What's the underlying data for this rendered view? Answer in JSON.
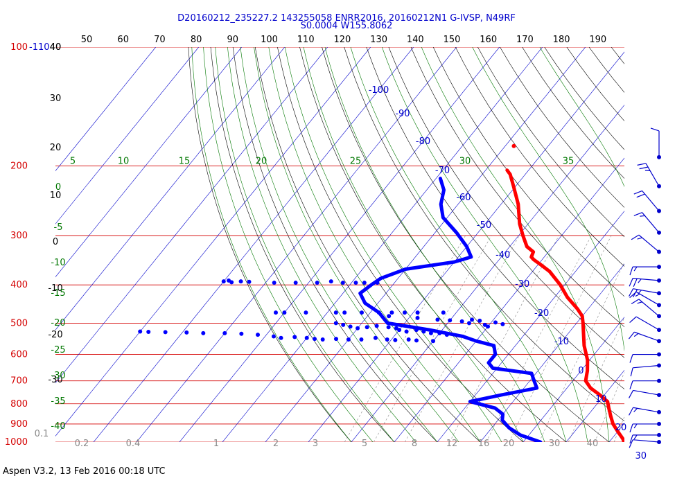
{
  "header": {
    "line1": "D20160212_235227.2 143255058 ENRR2016, 20160212N1 G-IVSP, N49RF",
    "line2": "S0.0004 W155.8062"
  },
  "footer": "Aspen V3.2, 13 Feb 2016  00:18 UTC",
  "colors": {
    "isobar": "#d40000",
    "isotherm": "#0000cc",
    "dry_adiabat": "#000000",
    "moist_adiabat": "#007700",
    "mixing_ratio": "#888888",
    "temperature": "#ff0000",
    "dewpoint": "#0000ff",
    "wind": "#0000cc"
  },
  "chart_data": {
    "type": "skew-t",
    "pressure_labels": [
      "100",
      "200",
      "300",
      "400",
      "500",
      "600",
      "700",
      "800",
      "900",
      "1000"
    ],
    "pressure_extra_label": "-110",
    "temperature_top_ticks": [
      "40",
      "50",
      "60",
      "70",
      "80",
      "90",
      "100",
      "110",
      "120",
      "130",
      "140",
      "150",
      "160",
      "170",
      "180",
      "190"
    ],
    "isotherm_labels": [
      "-100",
      "-90",
      "-80",
      "-70",
      "-60",
      "-50",
      "-40",
      "-30",
      "-20",
      "-10",
      "0",
      "10",
      "20",
      "30"
    ],
    "dry_adiabat_labels": [
      "40",
      "30",
      "20",
      "10",
      "0",
      "-10",
      "-20",
      "-30"
    ],
    "moist_adiabat_labels": [
      "5",
      "10",
      "15",
      "20",
      "25",
      "30",
      "35",
      "0",
      "-5",
      "-10",
      "-15",
      "-20",
      "-25",
      "-30",
      "-35",
      "-40"
    ],
    "mixing_ratio_labels": [
      "0.1",
      "0.2",
      "0.4",
      "1",
      "2",
      "3",
      "5",
      "8",
      "12",
      "16",
      "20",
      "30",
      "40"
    ],
    "temperature_profile": [
      [
        205,
        -55
      ],
      [
        210,
        -53.5
      ],
      [
        225,
        -50.5
      ],
      [
        250,
        -46
      ],
      [
        280,
        -42
      ],
      [
        300,
        -39
      ],
      [
        320,
        -36
      ],
      [
        330,
        -33.5
      ],
      [
        340,
        -33
      ],
      [
        345,
        -32
      ],
      [
        355,
        -29.5
      ],
      [
        370,
        -26
      ],
      [
        400,
        -21
      ],
      [
        430,
        -17
      ],
      [
        460,
        -12.5
      ],
      [
        480,
        -10
      ],
      [
        500,
        -8.5
      ],
      [
        530,
        -6.5
      ],
      [
        570,
        -4
      ],
      [
        620,
        -0.5
      ],
      [
        660,
        1.5
      ],
      [
        700,
        3
      ],
      [
        730,
        5.5
      ],
      [
        760,
        9
      ],
      [
        790,
        12
      ],
      [
        820,
        13.5
      ],
      [
        860,
        15.5
      ],
      [
        900,
        17.5
      ],
      [
        940,
        20
      ],
      [
        980,
        22.5
      ],
      [
        1000,
        23.5
      ]
    ],
    "temperature_isolated": [
      [
        178,
        -58
      ]
    ],
    "dewpoint_profile": [
      [
        215,
        -69
      ],
      [
        230,
        -66
      ],
      [
        250,
        -64
      ],
      [
        270,
        -61
      ],
      [
        295,
        -55
      ],
      [
        320,
        -50
      ],
      [
        340,
        -47
      ],
      [
        350,
        -50
      ],
      [
        365,
        -60
      ],
      [
        385,
        -64
      ],
      [
        400,
        -65
      ],
      [
        420,
        -66
      ],
      [
        445,
        -63
      ],
      [
        470,
        -58
      ],
      [
        500,
        -54
      ],
      [
        520,
        -43
      ],
      [
        540,
        -34
      ],
      [
        555,
        -30
      ],
      [
        570,
        -25
      ],
      [
        600,
        -23
      ],
      [
        630,
        -23
      ],
      [
        650,
        -21
      ],
      [
        670,
        -11
      ],
      [
        700,
        -9
      ],
      [
        730,
        -7
      ],
      [
        760,
        -14
      ],
      [
        790,
        -20
      ],
      [
        820,
        -13
      ],
      [
        850,
        -10
      ],
      [
        880,
        -9
      ],
      [
        920,
        -6
      ],
      [
        960,
        -2
      ],
      [
        1000,
        4
      ]
    ],
    "dewpoint_scatter": [
      [
        390,
        -99
      ],
      [
        392,
        -100
      ],
      [
        394,
        -98
      ],
      [
        392,
        -96
      ],
      [
        393,
        -94
      ],
      [
        395,
        -88
      ],
      [
        395,
        -83
      ],
      [
        395,
        -78
      ],
      [
        392,
        -75
      ],
      [
        395,
        -72
      ],
      [
        395,
        -69
      ],
      [
        395,
        -67
      ],
      [
        395,
        -64
      ],
      [
        470,
        -82
      ],
      [
        470,
        -80
      ],
      [
        470,
        -75
      ],
      [
        470,
        -68
      ],
      [
        470,
        -66
      ],
      [
        470,
        -62
      ],
      [
        470,
        -58
      ],
      [
        470,
        -55
      ],
      [
        470,
        -52
      ],
      [
        470,
        -49
      ],
      [
        470,
        -43
      ],
      [
        480,
        -55
      ],
      [
        485,
        -48
      ],
      [
        490,
        -43
      ],
      [
        492,
        -40
      ],
      [
        495,
        -37
      ],
      [
        500,
        -35
      ],
      [
        505,
        -31
      ],
      [
        510,
        -30
      ],
      [
        490,
        -35
      ],
      [
        493,
        -33
      ],
      [
        498,
        -29
      ],
      [
        503,
        -27
      ],
      [
        500,
        -66
      ],
      [
        505,
        -64
      ],
      [
        510,
        -62
      ],
      [
        515,
        -60
      ],
      [
        512,
        -58
      ],
      [
        508,
        -56
      ],
      [
        512,
        -53
      ],
      [
        515,
        -51
      ],
      [
        520,
        -50
      ],
      [
        525,
        -48
      ],
      [
        520,
        -46
      ],
      [
        525,
        -44
      ],
      [
        530,
        -42
      ],
      [
        530,
        -40
      ],
      [
        535,
        -38
      ],
      [
        525,
        -110
      ],
      [
        526,
        -108
      ],
      [
        527,
        -104
      ],
      [
        528,
        -99
      ],
      [
        530,
        -95
      ],
      [
        530,
        -90
      ],
      [
        532,
        -86
      ],
      [
        535,
        -82
      ],
      [
        540,
        -78
      ],
      [
        545,
        -76
      ],
      [
        542,
        -73
      ],
      [
        545,
        -70
      ],
      [
        548,
        -68
      ],
      [
        550,
        -66
      ],
      [
        548,
        -63
      ],
      [
        550,
        -60
      ],
      [
        550,
        -57
      ],
      [
        545,
        -54
      ],
      [
        550,
        -51
      ],
      [
        552,
        -49
      ],
      [
        550,
        -46
      ],
      [
        553,
        -44
      ],
      [
        555,
        -40
      ]
    ],
    "wind_barbs": [
      {
        "pressure": 190,
        "direction": 360,
        "speed": 10
      },
      {
        "pressure": 225,
        "direction": 330,
        "speed": 25
      },
      {
        "pressure": 260,
        "direction": 320,
        "speed": 20
      },
      {
        "pressure": 295,
        "direction": 320,
        "speed": 15
      },
      {
        "pressure": 330,
        "direction": 310,
        "speed": 15
      },
      {
        "pressure": 360,
        "direction": 270,
        "speed": 15
      },
      {
        "pressure": 390,
        "direction": 275,
        "speed": 25
      },
      {
        "pressure": 420,
        "direction": 280,
        "speed": 25
      },
      {
        "pressure": 450,
        "direction": 300,
        "speed": 15
      },
      {
        "pressure": 480,
        "direction": 310,
        "speed": 15
      },
      {
        "pressure": 520,
        "direction": 300,
        "speed": 10
      },
      {
        "pressure": 555,
        "direction": 290,
        "speed": 15
      },
      {
        "pressure": 600,
        "direction": 270,
        "speed": 10
      },
      {
        "pressure": 640,
        "direction": 265,
        "speed": 10
      },
      {
        "pressure": 700,
        "direction": 270,
        "speed": 10
      },
      {
        "pressure": 760,
        "direction": 280,
        "speed": 10
      },
      {
        "pressure": 840,
        "direction": 280,
        "speed": 15
      },
      {
        "pressure": 900,
        "direction": 270,
        "speed": 15
      },
      {
        "pressure": 960,
        "direction": 270,
        "speed": 15
      },
      {
        "pressure": 1000,
        "direction": 275,
        "speed": 10
      }
    ],
    "title": "",
    "xlabel": "",
    "ylabel": ""
  }
}
